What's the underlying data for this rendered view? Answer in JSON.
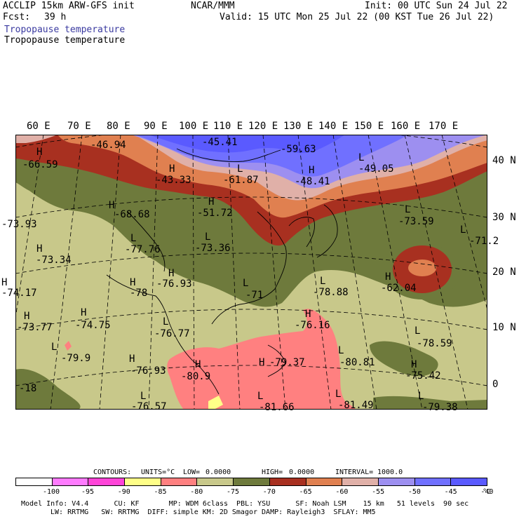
{
  "header": {
    "model": "ACCLIP 15km ARW-GFS init",
    "fcst_label": "Fcst:",
    "fcst_value": "39 h",
    "org": "NCAR/MMM",
    "init": "Init: 00 UTC Sun 24 Jul 22",
    "valid": "Valid: 15 UTC Mon 25 Jul 22 (00 KST Tue 26 Jul 22)",
    "field1": "Tropopause temperature",
    "field2": "Tropopause temperature",
    "field1_color": "#3a3aa0"
  },
  "lon_labels": [
    "60 E",
    "70 E",
    "80 E",
    "90 E",
    "100 E",
    "110 E",
    "120 E",
    "130 E",
    "140 E",
    "150 E",
    "160 E",
    "170 E"
  ],
  "lat_labels": [
    "40 N",
    "30 N",
    "20 N",
    "10 N",
    "0"
  ],
  "field_values": [
    {
      "k": "H",
      "v": "-66.59"
    },
    {
      "k": "",
      "v": "-46.94"
    },
    {
      "k": "",
      "v": "-45.41"
    },
    {
      "k": "",
      "v": "-59.63"
    },
    {
      "k": "H",
      "v": "-43.33"
    },
    {
      "k": "L",
      "v": "-61.87"
    },
    {
      "k": "H",
      "v": "-48.41"
    },
    {
      "k": "L",
      "v": "-49.05"
    },
    {
      "k": "H",
      "v": "-68.68"
    },
    {
      "k": "H",
      "v": "-51.72"
    },
    {
      "k": "L",
      "v": "-73.59"
    },
    {
      "k": "L",
      "v": "-71.2"
    },
    {
      "k": "",
      "v": "-73.93"
    },
    {
      "k": "L",
      "v": "-77.76"
    },
    {
      "k": "L",
      "v": "-73.36"
    },
    {
      "k": "H",
      "v": "-73.34"
    },
    {
      "k": "H",
      "v": "-74.17"
    },
    {
      "k": "H",
      "v": "-78"
    },
    {
      "k": "H",
      "v": "-76.93"
    },
    {
      "k": "L",
      "v": "-71"
    },
    {
      "k": "L",
      "v": "-78.88"
    },
    {
      "k": "H",
      "v": "-62.04"
    },
    {
      "k": "H",
      "v": "-73.77"
    },
    {
      "k": "H",
      "v": "-74.75"
    },
    {
      "k": "H",
      "v": "-76.16"
    },
    {
      "k": "L",
      "v": "-76.77"
    },
    {
      "k": "L",
      "v": "-78.59"
    },
    {
      "k": "L",
      "v": "-79.9"
    },
    {
      "k": "H",
      "v": "-76.93"
    },
    {
      "k": "H",
      "v": "-80.9"
    },
    {
      "k": "H",
      "v": "-79.37"
    },
    {
      "k": "L",
      "v": "-80.81"
    },
    {
      "k": "H",
      "v": "-75.42"
    },
    {
      "k": "",
      "v": "-18"
    },
    {
      "k": "L",
      "v": "-76.57"
    },
    {
      "k": "L",
      "v": "-81.49"
    },
    {
      "k": "L",
      "v": "-79.38"
    },
    {
      "k": "L",
      "v": "-81.66"
    }
  ],
  "contour_info": {
    "contours": "CONTOURS:",
    "units": "UNITS=°C",
    "low": "LOW=",
    "low_val": "0.0000",
    "high": "HIGH=",
    "high_val": "0.0000",
    "interval": "INTERVAL=",
    "interval_val": "1000.0"
  },
  "colorbar": {
    "colors": [
      "#ffffff",
      "#ff7bff",
      "#ff44d8",
      "#ffff88",
      "#ff8080",
      "#c8c88a",
      "#6e7a3c",
      "#a83020",
      "#e08050",
      "#e0b0a8",
      "#9d8ff0",
      "#7070ff",
      "#5a5aff"
    ],
    "ticks": [
      "-100",
      "-95",
      "-90",
      "-85",
      "-80",
      "-75",
      "-70",
      "-65",
      "-60",
      "-55",
      "-50",
      "-45",
      "-40"
    ],
    "unit": "°C"
  },
  "model_info": {
    "line1": "Model Info: V4.4      CU: KF       MP: WDM 6class  PBL: YSU      SF: Noah LSM    15 km   51 levels  90 sec",
    "line2": "LW: RRTMG   SW: RRTMG  DIFF: simple KM: 2D Smagor DAMP: Rayleigh3  SFLAY: MM5"
  }
}
